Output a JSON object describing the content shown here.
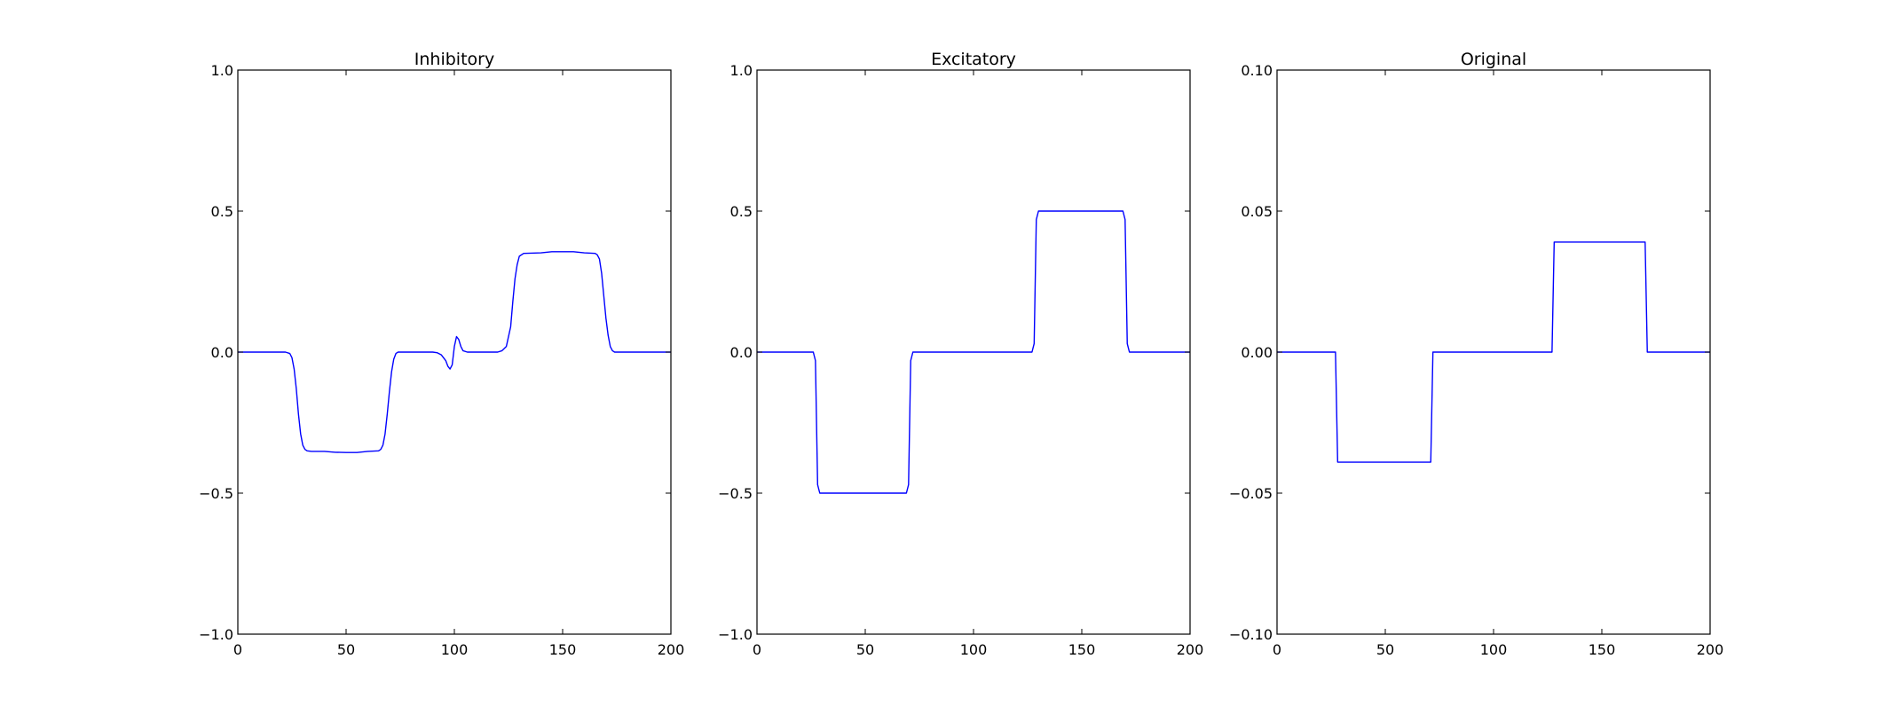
{
  "chart_data": [
    {
      "type": "line",
      "title": "Inhibitory",
      "xlabel": "",
      "ylabel": "",
      "xlim": [
        0,
        200
      ],
      "ylim": [
        -1.0,
        1.0
      ],
      "xticks": [
        0,
        50,
        100,
        150,
        200
      ],
      "xtick_labels": [
        "0",
        "50",
        "100",
        "150",
        "200"
      ],
      "yticks": [
        -1.0,
        -0.5,
        0.0,
        0.5,
        1.0
      ],
      "ytick_labels": [
        "−1.0",
        "−0.5",
        "0.0",
        "0.5",
        "1.0"
      ],
      "grid": false,
      "line_color": "#0000ff",
      "series": [
        {
          "x": [
            0,
            22,
            24,
            25,
            26,
            27,
            28,
            29,
            30,
            31,
            32,
            34,
            40,
            45,
            50,
            55,
            60,
            65,
            66,
            67,
            68,
            69,
            70,
            71,
            72,
            73,
            74,
            75,
            77,
            90,
            92,
            94,
            96,
            97,
            98,
            99,
            100,
            101,
            102,
            103,
            104,
            106,
            108,
            120,
            122,
            124,
            126,
            127,
            128,
            129,
            130,
            132,
            140,
            145,
            150,
            155,
            160,
            165,
            166,
            167,
            168,
            169,
            170,
            171,
            172,
            173,
            174,
            176,
            180,
            200
          ],
          "y": [
            0,
            0,
            -0.005,
            -0.02,
            -0.06,
            -0.13,
            -0.22,
            -0.29,
            -0.33,
            -0.345,
            -0.35,
            -0.352,
            -0.352,
            -0.355,
            -0.356,
            -0.356,
            -0.352,
            -0.35,
            -0.345,
            -0.33,
            -0.29,
            -0.22,
            -0.14,
            -0.07,
            -0.025,
            -0.005,
            0,
            0,
            0,
            0,
            -0.002,
            -0.01,
            -0.03,
            -0.05,
            -0.06,
            -0.045,
            0.02,
            0.055,
            0.045,
            0.02,
            0.005,
            0,
            0,
            0,
            0.005,
            0.02,
            0.09,
            0.18,
            0.26,
            0.31,
            0.34,
            0.35,
            0.352,
            0.356,
            0.356,
            0.356,
            0.352,
            0.35,
            0.345,
            0.33,
            0.28,
            0.2,
            0.12,
            0.06,
            0.02,
            0.005,
            0,
            0,
            0,
            0
          ]
        }
      ]
    },
    {
      "type": "line",
      "title": "Excitatory",
      "xlabel": "",
      "ylabel": "",
      "xlim": [
        0,
        200
      ],
      "ylim": [
        -1.0,
        1.0
      ],
      "xticks": [
        0,
        50,
        100,
        150,
        200
      ],
      "xtick_labels": [
        "0",
        "50",
        "100",
        "150",
        "200"
      ],
      "yticks": [
        -1.0,
        -0.5,
        0.0,
        0.5,
        1.0
      ],
      "ytick_labels": [
        "−1.0",
        "−0.5",
        "0.0",
        "0.5",
        "1.0"
      ],
      "grid": false,
      "line_color": "#0000ff",
      "series": [
        {
          "x": [
            0,
            26,
            27,
            28,
            29,
            30,
            69,
            70,
            71,
            72,
            73,
            127,
            128,
            129,
            130,
            131,
            169,
            170,
            171,
            172,
            173,
            200
          ],
          "y": [
            0,
            0,
            -0.03,
            -0.47,
            -0.5,
            -0.5,
            -0.5,
            -0.47,
            -0.03,
            0,
            0,
            0,
            0.03,
            0.47,
            0.5,
            0.5,
            0.5,
            0.47,
            0.03,
            0,
            0,
            0
          ]
        }
      ]
    },
    {
      "type": "line",
      "title": "Original",
      "xlabel": "",
      "ylabel": "",
      "xlim": [
        0,
        200
      ],
      "ylim": [
        -0.1,
        0.1
      ],
      "xticks": [
        0,
        50,
        100,
        150,
        200
      ],
      "xtick_labels": [
        "0",
        "50",
        "100",
        "150",
        "200"
      ],
      "yticks": [
        -0.1,
        -0.05,
        0.0,
        0.05,
        0.1
      ],
      "ytick_labels": [
        "−0.10",
        "−0.05",
        "0.00",
        "0.05",
        "0.10"
      ],
      "grid": false,
      "line_color": "#0000ff",
      "series": [
        {
          "x": [
            0,
            27,
            28,
            71,
            72,
            127,
            128,
            170,
            171,
            200
          ],
          "y": [
            0,
            0,
            -0.039,
            -0.039,
            0,
            0,
            0.039,
            0.039,
            0,
            0
          ]
        }
      ]
    }
  ]
}
